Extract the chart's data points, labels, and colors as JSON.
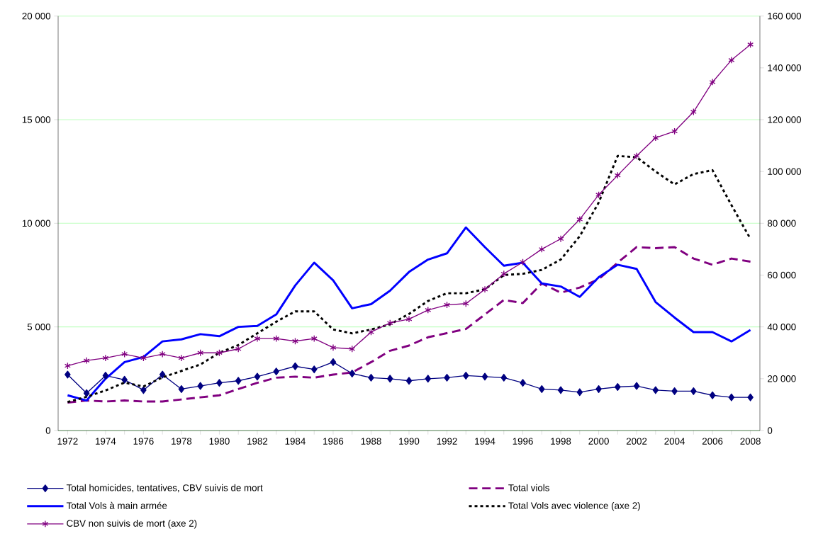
{
  "chart_data": {
    "type": "line",
    "x": [
      1972,
      1973,
      1974,
      1975,
      1976,
      1977,
      1978,
      1979,
      1980,
      1981,
      1982,
      1983,
      1984,
      1985,
      1986,
      1987,
      1988,
      1989,
      1990,
      1991,
      1992,
      1993,
      1994,
      1995,
      1996,
      1997,
      1998,
      1999,
      2000,
      2001,
      2002,
      2003,
      2004,
      2005,
      2006,
      2007,
      2008
    ],
    "series": [
      {
        "name": "Total homicides, tentatives, CBV suivis de mort",
        "color": "#000080",
        "marker": "diamond",
        "line_style": "solid",
        "values": [
          2700,
          1800,
          2650,
          2450,
          1950,
          2700,
          2000,
          2150,
          2300,
          2400,
          2600,
          2850,
          3100,
          2950,
          3300,
          2750,
          2550,
          2500,
          2400,
          2500,
          2550,
          2650,
          2600,
          2550,
          2300,
          2000,
          1950,
          1850,
          2000,
          2100,
          2150,
          1950,
          1900,
          1900,
          1700,
          1600,
          1600
        ]
      },
      {
        "name": "Total viols",
        "color": "#800080",
        "marker": "none",
        "line_style": "dashed",
        "values": [
          1350,
          1450,
          1400,
          1450,
          1400,
          1400,
          1500,
          1600,
          1700,
          2000,
          2300,
          2550,
          2600,
          2550,
          2700,
          2800,
          3300,
          3850,
          4100,
          4500,
          4700,
          4900,
          5600,
          6300,
          6150,
          7100,
          6650,
          6900,
          7300,
          8100,
          8850,
          8800,
          8850,
          8300,
          8000,
          8300,
          8150
        ]
      },
      {
        "name": "Total Vols à main armée",
        "color": "#0000ff",
        "marker": "none",
        "line_style": "solid",
        "values": [
          1700,
          1450,
          2500,
          3300,
          3550,
          4300,
          4400,
          4650,
          4550,
          5000,
          5050,
          5600,
          7000,
          8100,
          7250,
          5900,
          6100,
          6750,
          7650,
          8250,
          8550,
          9800,
          8850,
          7950,
          8100,
          7100,
          6950,
          6450,
          7400,
          8000,
          7800,
          6200,
          5450,
          4750,
          4750,
          4300,
          4850
        ]
      },
      {
        "name": "Total Vols avec violence (axe 2)",
        "color": "#000000",
        "marker": "none",
        "line_style": "dotted",
        "axis": "y2",
        "values": [
          11000,
          13000,
          15500,
          18500,
          17000,
          20500,
          23000,
          25500,
          30000,
          33000,
          37500,
          42000,
          46000,
          46000,
          39000,
          37500,
          39000,
          41000,
          45000,
          50000,
          53000,
          53000,
          54500,
          60000,
          60500,
          62000,
          66000,
          75000,
          88000,
          106000,
          105500,
          100000,
          95000,
          99000,
          100500,
          87000,
          74000
        ]
      },
      {
        "name": "CBV non suivis de mort (axe 2)",
        "color": "#800080",
        "marker": "cross",
        "line_style": "solid",
        "axis": "y2",
        "values": [
          25000,
          27000,
          28000,
          29500,
          28000,
          29500,
          28000,
          30000,
          30000,
          31500,
          35500,
          35500,
          34500,
          35500,
          32000,
          31500,
          38000,
          41500,
          43000,
          46500,
          48500,
          49000,
          54500,
          60500,
          65000,
          70000,
          74000,
          81500,
          91000,
          98500,
          106000,
          113000,
          115500,
          123000,
          134500,
          143000,
          149000
        ]
      }
    ],
    "xlim": [
      1971.5,
      2008.5
    ],
    "xticks": [
      1972,
      {
        "value": 1973,
        "label": null
      },
      1974,
      {
        "value": 1975,
        "label": null
      },
      1976,
      {
        "value": 1977,
        "label": null
      },
      1978,
      {
        "value": 1979,
        "label": null
      },
      1980,
      {
        "value": 1981,
        "label": null
      },
      1982,
      {
        "value": 1983,
        "label": null
      },
      1984,
      {
        "value": 1985,
        "label": null
      },
      1986,
      {
        "value": 1987,
        "label": null
      },
      1988,
      {
        "value": 1989,
        "label": null
      },
      1990,
      {
        "value": 1991,
        "label": null
      },
      1992,
      {
        "value": 1993,
        "label": null
      },
      1994,
      {
        "value": 1995,
        "label": null
      },
      1996,
      {
        "value": 1997,
        "label": null
      },
      1998,
      {
        "value": 1999,
        "label": null
      },
      2000,
      {
        "value": 2001,
        "label": null
      },
      2002,
      {
        "value": 2003,
        "label": null
      },
      2004,
      {
        "value": 2005,
        "label": null
      },
      2006,
      {
        "value": 2007,
        "label": null
      },
      2008
    ],
    "ylim": [
      0,
      20000
    ],
    "yticks": [
      0,
      {
        "value": 5000,
        "label": "5 000"
      },
      {
        "value": 10000,
        "label": "10 000"
      },
      {
        "value": 15000,
        "label": "15 000"
      },
      {
        "value": 20000,
        "label": "20 000"
      }
    ],
    "y2lim": [
      0,
      160000
    ],
    "y2ticks": [
      0,
      {
        "value": 20000,
        "label": "20 000"
      },
      {
        "value": 40000,
        "label": "40 000"
      },
      {
        "value": 60000,
        "label": "60 000"
      },
      {
        "value": 80000,
        "label": "80 000"
      },
      {
        "value": 100000,
        "label": "100 000"
      },
      {
        "value": 120000,
        "label": "120 000"
      },
      {
        "value": 140000,
        "label": "140 000"
      },
      {
        "value": 160000,
        "label": "160 000"
      }
    ],
    "grid": "y",
    "legend": "bottom"
  }
}
